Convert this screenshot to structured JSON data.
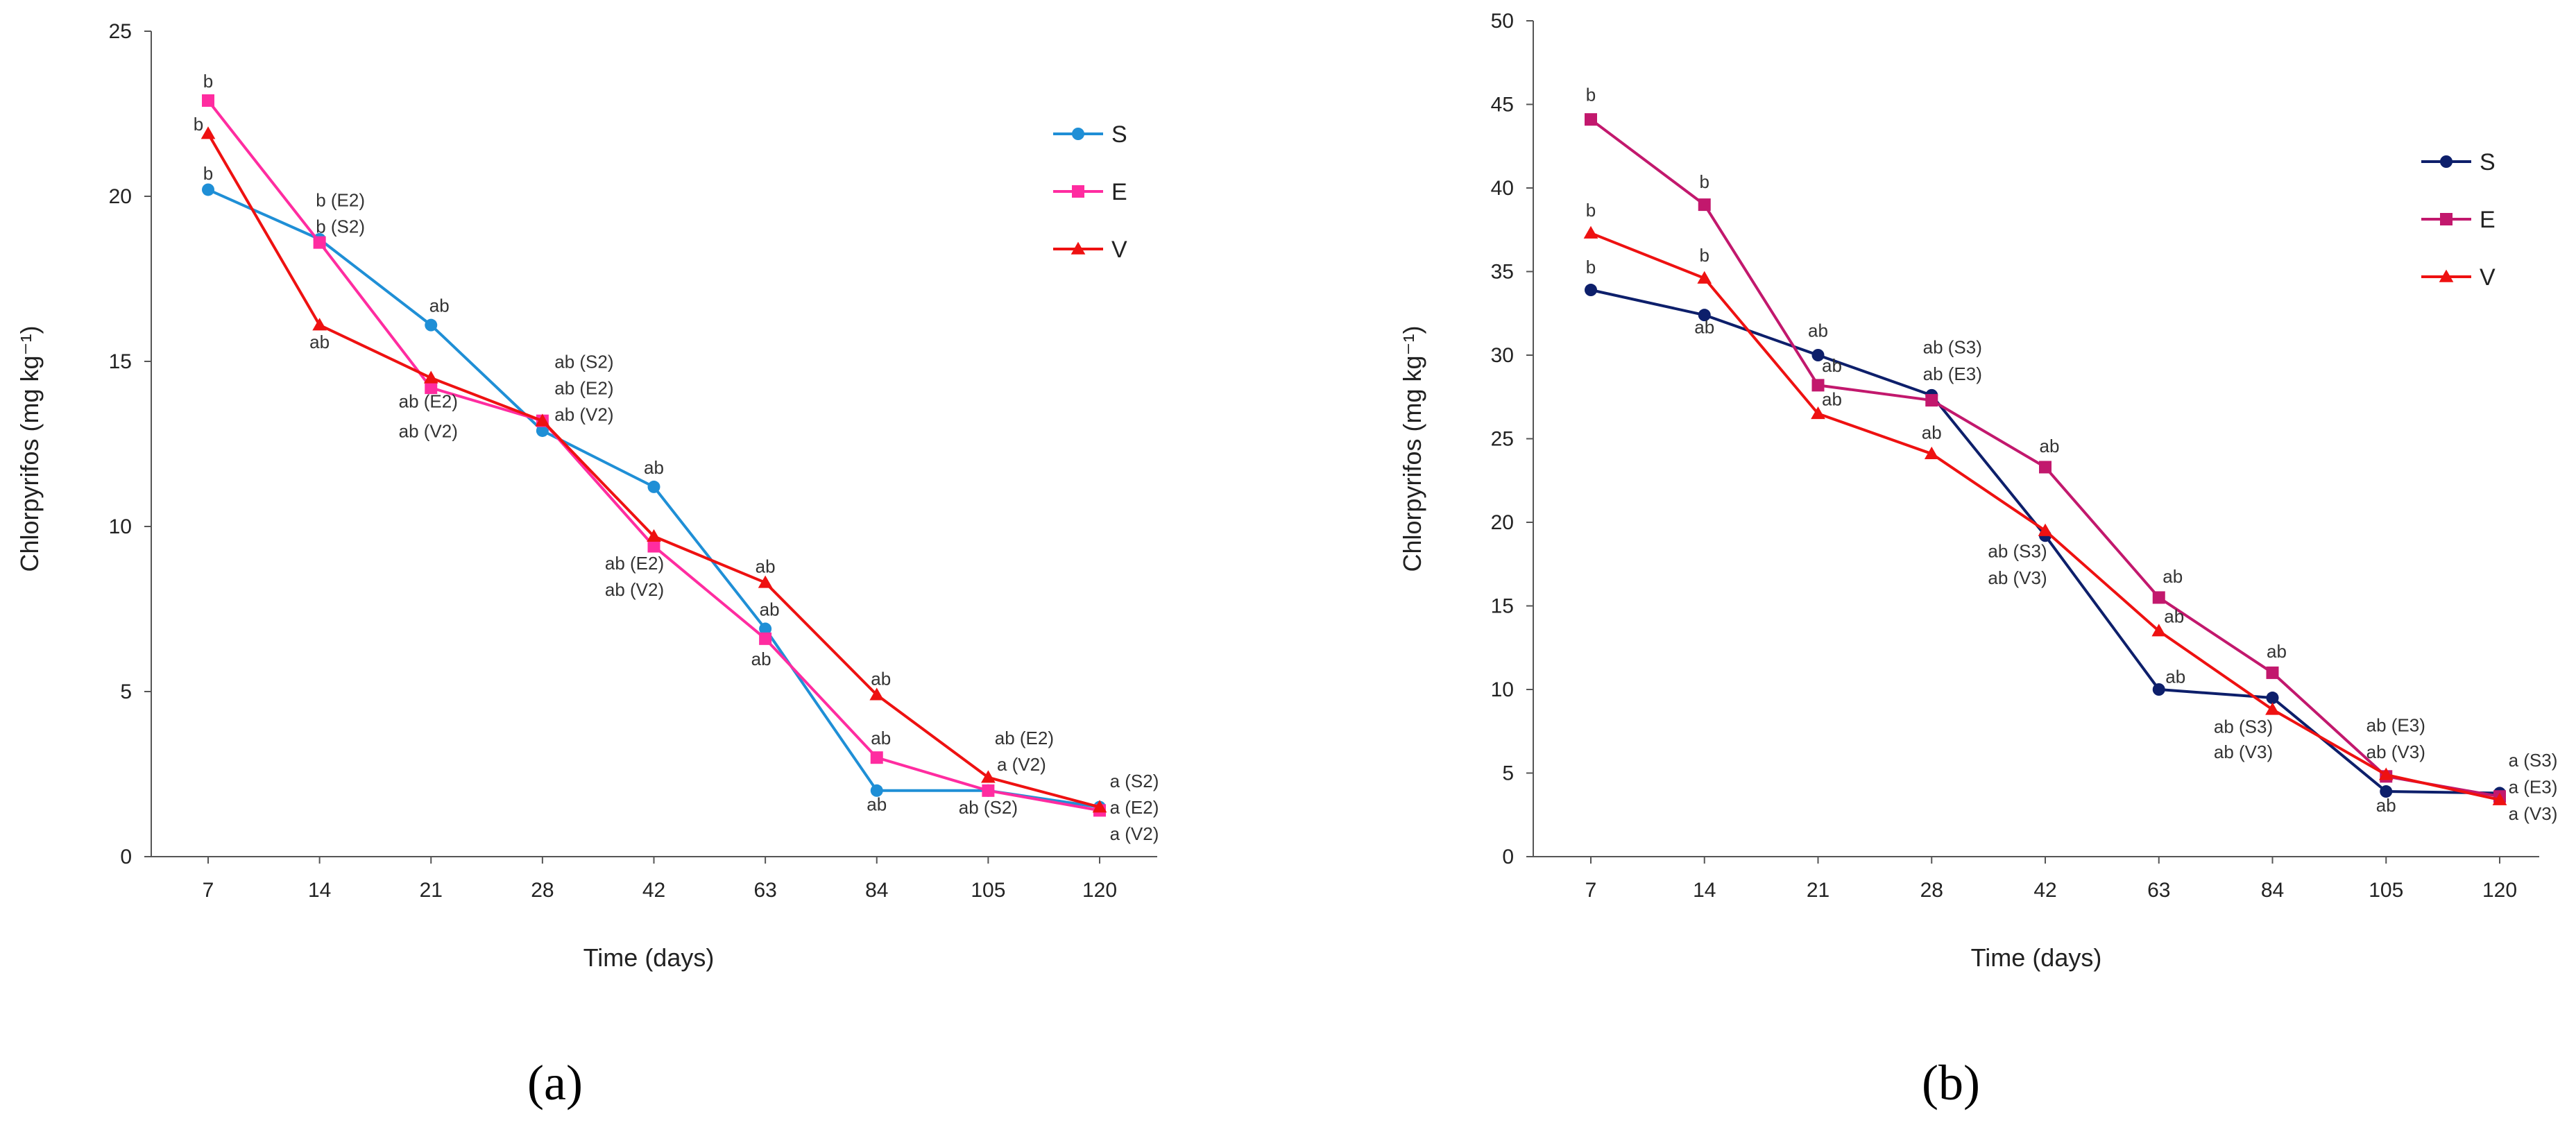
{
  "chart_data": [
    {
      "panel": "(a)",
      "type": "line",
      "categories": [
        "7",
        "14",
        "21",
        "28",
        "42",
        "63",
        "84",
        "105",
        "120"
      ],
      "xlabel": "Time (days)",
      "ylabel": "Chlorpyrifos (mg kg⁻¹)",
      "ylim": [
        0,
        25
      ],
      "yticks": [
        0,
        5,
        10,
        15,
        20,
        25
      ],
      "legend_position": "top-right",
      "series": [
        {
          "name": "S",
          "color": "#1f8fd6",
          "marker": "circle",
          "values": [
            20.2,
            18.7,
            16.1,
            12.9,
            11.2,
            6.9,
            2.0,
            2.0,
            1.5
          ]
        },
        {
          "name": "E",
          "color": "#ff2ca0",
          "marker": "square",
          "values": [
            22.9,
            18.6,
            14.2,
            13.2,
            9.4,
            6.6,
            3.0,
            2.0,
            1.4
          ]
        },
        {
          "name": "V",
          "color": "#ee1111",
          "marker": "triangle",
          "values": [
            21.9,
            16.1,
            14.5,
            13.2,
            9.7,
            8.3,
            4.9,
            2.4,
            1.5
          ]
        }
      ],
      "annotations": [
        {
          "text": "b",
          "cat": 0,
          "y": 23.3,
          "dx": 0
        },
        {
          "text": "b",
          "cat": 0,
          "y": 22.0,
          "dx": -14
        },
        {
          "text": "b",
          "cat": 0,
          "y": 20.5,
          "dx": 0
        },
        {
          "text": "b (E2)",
          "cat": 1,
          "y": 19.7,
          "dx": 30
        },
        {
          "text": "b (S2)",
          "cat": 1,
          "y": 18.9,
          "dx": 30
        },
        {
          "text": "ab",
          "cat": 1,
          "y": 15.4,
          "dx": 0
        },
        {
          "text": "ab",
          "cat": 2,
          "y": 16.5,
          "dx": 12
        },
        {
          "text": "ab (E2)",
          "cat": 2,
          "y": 13.6,
          "dx": -4
        },
        {
          "text": "ab (V2)",
          "cat": 2,
          "y": 12.7,
          "dx": -4
        },
        {
          "text": "ab (S2)",
          "cat": 3,
          "y": 14.8,
          "dx": 60
        },
        {
          "text": "ab (E2)",
          "cat": 3,
          "y": 14.0,
          "dx": 60
        },
        {
          "text": "ab (V2)",
          "cat": 3,
          "y": 13.2,
          "dx": 60
        },
        {
          "text": "ab",
          "cat": 4,
          "y": 11.6,
          "dx": 0
        },
        {
          "text": "ab (E2)",
          "cat": 4,
          "y": 8.7,
          "dx": -28
        },
        {
          "text": "ab (V2)",
          "cat": 4,
          "y": 7.9,
          "dx": -28
        },
        {
          "text": "ab",
          "cat": 5,
          "y": 8.6,
          "dx": 0
        },
        {
          "text": "ab",
          "cat": 5,
          "y": 7.3,
          "dx": 6
        },
        {
          "text": "ab",
          "cat": 5,
          "y": 5.8,
          "dx": -6
        },
        {
          "text": "ab",
          "cat": 6,
          "y": 5.2,
          "dx": 6
        },
        {
          "text": "ab",
          "cat": 6,
          "y": 3.4,
          "dx": 6
        },
        {
          "text": "ab",
          "cat": 6,
          "y": 1.4,
          "dx": 0
        },
        {
          "text": "ab (E2)",
          "cat": 7,
          "y": 3.4,
          "dx": 52
        },
        {
          "text": "a (V2)",
          "cat": 7,
          "y": 2.6,
          "dx": 48
        },
        {
          "text": "ab (S2)",
          "cat": 7,
          "y": 1.3,
          "dx": 0
        },
        {
          "text": "a (S2)",
          "cat": 8,
          "y": 2.1,
          "dx": 50
        },
        {
          "text": "a (E2)",
          "cat": 8,
          "y": 1.3,
          "dx": 50
        },
        {
          "text": "a (V2)",
          "cat": 8,
          "y": 0.5,
          "dx": 50
        }
      ]
    },
    {
      "panel": "(b)",
      "type": "line",
      "categories": [
        "7",
        "14",
        "21",
        "28",
        "42",
        "63",
        "84",
        "105",
        "120"
      ],
      "xlabel": "Time (days)",
      "ylabel": "Chlorpyrifos (mg kg⁻¹)",
      "ylim": [
        0,
        50
      ],
      "yticks": [
        0,
        5,
        10,
        15,
        20,
        25,
        30,
        35,
        40,
        45,
        50
      ],
      "legend_position": "top-right",
      "series": [
        {
          "name": "S",
          "color": "#0d1f6b",
          "marker": "circle",
          "values": [
            33.9,
            32.4,
            30.0,
            27.6,
            19.2,
            10.0,
            9.5,
            3.9,
            3.8
          ]
        },
        {
          "name": "E",
          "color": "#c2186d",
          "marker": "square",
          "values": [
            44.1,
            39.0,
            28.2,
            27.3,
            23.3,
            15.5,
            11.0,
            4.8,
            3.6
          ]
        },
        {
          "name": "V",
          "color": "#ee1111",
          "marker": "triangle",
          "values": [
            37.3,
            34.6,
            26.5,
            24.1,
            19.5,
            13.5,
            8.8,
            4.9,
            3.4
          ]
        }
      ],
      "annotations": [
        {
          "text": "b",
          "cat": 0,
          "y": 45.2,
          "dx": 0
        },
        {
          "text": "b",
          "cat": 0,
          "y": 38.3,
          "dx": 0
        },
        {
          "text": "b",
          "cat": 0,
          "y": 34.9,
          "dx": 0
        },
        {
          "text": "b",
          "cat": 1,
          "y": 40.0,
          "dx": 0
        },
        {
          "text": "b",
          "cat": 1,
          "y": 35.6,
          "dx": 0
        },
        {
          "text": "ab",
          "cat": 1,
          "y": 31.3,
          "dx": 0
        },
        {
          "text": "ab",
          "cat": 2,
          "y": 31.1,
          "dx": 0
        },
        {
          "text": "ab",
          "cat": 2,
          "y": 29.0,
          "dx": 20
        },
        {
          "text": "ab",
          "cat": 2,
          "y": 27.0,
          "dx": 20
        },
        {
          "text": "ab (S3)",
          "cat": 3,
          "y": 30.1,
          "dx": 30
        },
        {
          "text": "ab (E3)",
          "cat": 3,
          "y": 28.5,
          "dx": 30
        },
        {
          "text": "ab",
          "cat": 3,
          "y": 25.0,
          "dx": 0
        },
        {
          "text": "ab",
          "cat": 4,
          "y": 24.2,
          "dx": 6
        },
        {
          "text": "ab (S3)",
          "cat": 4,
          "y": 17.9,
          "dx": -40
        },
        {
          "text": "ab (V3)",
          "cat": 4,
          "y": 16.3,
          "dx": -40
        },
        {
          "text": "ab",
          "cat": 5,
          "y": 16.4,
          "dx": 20
        },
        {
          "text": "ab",
          "cat": 5,
          "y": 14.0,
          "dx": 22
        },
        {
          "text": "ab",
          "cat": 5,
          "y": 10.4,
          "dx": 24
        },
        {
          "text": "ab",
          "cat": 6,
          "y": 11.9,
          "dx": 6
        },
        {
          "text": "ab (S3)",
          "cat": 6,
          "y": 7.4,
          "dx": -42
        },
        {
          "text": "ab (V3)",
          "cat": 6,
          "y": 5.9,
          "dx": -42
        },
        {
          "text": "ab (E3)",
          "cat": 7,
          "y": 7.5,
          "dx": 14
        },
        {
          "text": "ab (V3)",
          "cat": 7,
          "y": 5.9,
          "dx": 14
        },
        {
          "text": "ab",
          "cat": 7,
          "y": 2.7,
          "dx": 0
        },
        {
          "text": "a (S3)",
          "cat": 8,
          "y": 5.4,
          "dx": 48
        },
        {
          "text": "a (E3)",
          "cat": 8,
          "y": 3.8,
          "dx": 48
        },
        {
          "text": "a (V3)",
          "cat": 8,
          "y": 2.2,
          "dx": 48
        }
      ]
    }
  ]
}
